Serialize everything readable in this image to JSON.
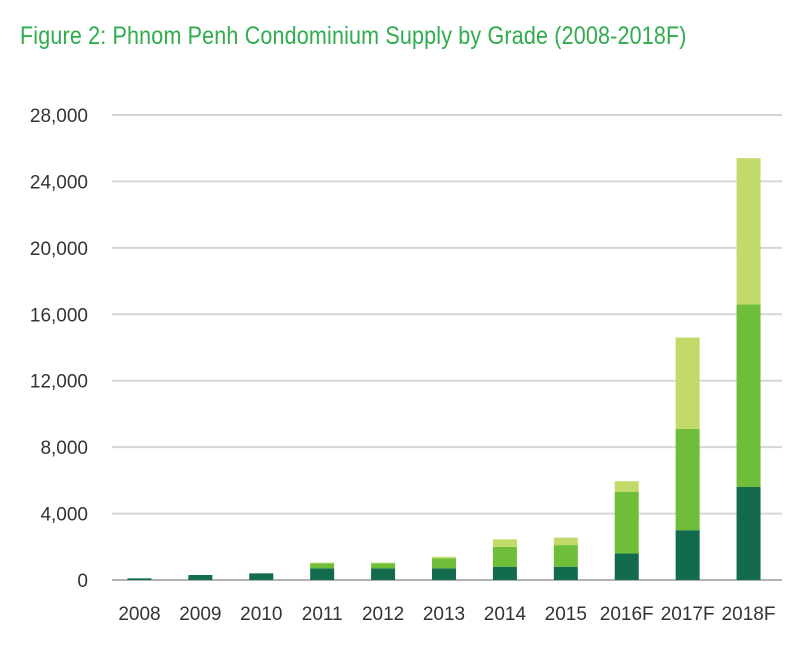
{
  "chart_data": {
    "type": "bar",
    "stacked": true,
    "title": "Figure 2: Phnom Penh Condominium Supply by Grade (2008-2018F)",
    "xlabel": "",
    "ylabel": "",
    "categories": [
      "2008",
      "2009",
      "2010",
      "2011",
      "2012",
      "2013",
      "2014",
      "2015",
      "2016F",
      "2017F",
      "2018F"
    ],
    "ylim": [
      0,
      28000
    ],
    "yticks": [
      0,
      4000,
      8000,
      12000,
      16000,
      20000,
      24000,
      28000
    ],
    "ytick_labels": [
      "0",
      "4,000",
      "8,000",
      "12,000",
      "16,000",
      "20,000",
      "24,000",
      "28,000"
    ],
    "grid": true,
    "legend": "none",
    "series": [
      {
        "values": [
          100,
          300,
          400,
          700,
          700,
          700,
          800,
          800,
          1600,
          3000,
          5600
        ],
        "color": "#136b4e"
      },
      {
        "values": [
          0,
          0,
          0,
          300,
          300,
          600,
          1200,
          1300,
          3700,
          6100,
          11000
        ],
        "color": "#6fbe3a"
      },
      {
        "values": [
          0,
          0,
          0,
          50,
          50,
          100,
          450,
          450,
          650,
          5500,
          8800
        ],
        "color": "#c2da6a"
      }
    ]
  }
}
